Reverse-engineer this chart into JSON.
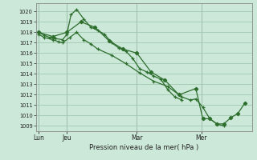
{
  "bg_color": "#cce8d8",
  "grid_color": "#a0c8b0",
  "line_color": "#2d6e2d",
  "marker_color": "#2d6e2d",
  "title": "Pression niveau de la mer( hPa )",
  "ylim": [
    1008.5,
    1020.8
  ],
  "yticks": [
    1009,
    1010,
    1011,
    1012,
    1013,
    1014,
    1015,
    1016,
    1017,
    1018,
    1019,
    1020
  ],
  "xlim": [
    -0.1,
    7.6
  ],
  "xtick_labels": [
    "Lun",
    "Jeu",
    "Mar",
    "Mer"
  ],
  "xtick_pos": [
    0.0,
    1.0,
    3.5,
    5.8
  ],
  "vlines": [
    0.0,
    1.0,
    3.5,
    5.8
  ],
  "line1_x": [
    0.0,
    0.2,
    0.4,
    0.6,
    0.85,
    1.0,
    1.15,
    1.35,
    1.6,
    1.85,
    2.1,
    2.35,
    2.6,
    2.85,
    3.1,
    3.35,
    3.6,
    3.85,
    4.1,
    4.35,
    4.6,
    4.85,
    5.1
  ],
  "line1_y": [
    1018.0,
    1017.7,
    1017.5,
    1017.4,
    1017.3,
    1017.8,
    1019.7,
    1020.2,
    1019.3,
    1018.5,
    1018.2,
    1017.8,
    1017.0,
    1016.5,
    1016.2,
    1015.5,
    1014.5,
    1014.2,
    1013.8,
    1013.5,
    1012.5,
    1011.8,
    1011.5
  ],
  "line2_x": [
    0.0,
    0.2,
    0.5,
    0.7,
    0.85,
    1.1,
    1.35,
    1.6,
    1.85,
    2.1,
    2.6,
    3.1,
    3.6,
    4.1,
    4.6,
    5.1,
    5.4,
    5.6,
    5.85,
    6.1,
    6.35,
    6.6
  ],
  "line2_y": [
    1017.8,
    1017.5,
    1017.3,
    1017.1,
    1017.0,
    1017.5,
    1018.0,
    1017.3,
    1016.9,
    1016.4,
    1015.8,
    1015.0,
    1014.1,
    1013.3,
    1012.8,
    1011.8,
    1011.5,
    1011.6,
    1010.8,
    1009.7,
    1009.2,
    1009.0
  ],
  "line3_x": [
    0.0,
    0.5,
    1.0,
    1.5,
    2.0,
    2.5,
    3.0,
    3.5,
    4.0,
    4.5,
    5.0,
    5.6,
    5.85,
    6.1,
    6.35,
    6.6,
    6.85,
    7.1,
    7.35
  ],
  "line3_y": [
    1018.0,
    1017.6,
    1018.0,
    1019.0,
    1018.5,
    1017.2,
    1016.4,
    1016.0,
    1014.2,
    1013.4,
    1012.0,
    1012.6,
    1009.7,
    1009.7,
    1009.2,
    1009.2,
    1009.8,
    1010.2,
    1011.2
  ]
}
